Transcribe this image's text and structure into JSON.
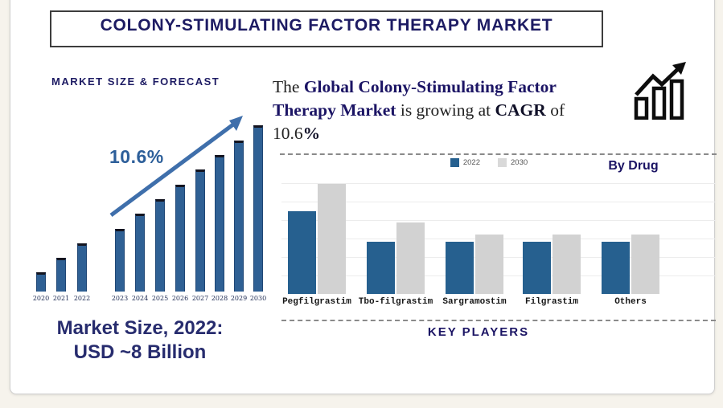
{
  "banner": {
    "title": "COLONY-STIMULATING FACTOR THERAPY MARKET"
  },
  "left_panel": {
    "heading": "MARKET SIZE & FORECAST",
    "cagr_annotation": "10.6%",
    "market_size_note_line1": "Market Size, 2022:",
    "market_size_note_line2": "USD ~8 Billion"
  },
  "right_panel": {
    "intro_lines": [
      [
        {
          "text": "The ",
          "style": "plain"
        },
        {
          "text": "Global Colony-Stimulating Factor",
          "style": "bold-navy"
        }
      ],
      [
        {
          "text": "Therapy Market",
          "style": "bold-navy"
        },
        {
          "text": " is growing at ",
          "style": "plain"
        },
        {
          "text": "CAGR",
          "style": "bold-dark"
        },
        {
          "text": " of",
          "style": "plain"
        }
      ],
      [
        {
          "text": "10.6",
          "style": "plain"
        },
        {
          "text": "%",
          "style": "bold-dark"
        }
      ]
    ],
    "by_drug_label": "By Drug",
    "key_players_label": "KEY PLAYERS",
    "legend": [
      {
        "label": "2022",
        "color": "#26608f"
      },
      {
        "label": "2030",
        "color": "#d9d9d9"
      }
    ]
  },
  "chart_data": [
    {
      "id": "market_size_forecast",
      "type": "bar",
      "title": "MARKET SIZE & FORECAST",
      "categories": [
        "2020",
        "2021",
        "2022",
        "2023",
        "2024",
        "2025",
        "2026",
        "2027",
        "2028",
        "2029",
        "2030"
      ],
      "values": [
        24,
        42,
        60,
        78,
        97,
        115,
        133,
        152,
        170,
        188,
        207
      ],
      "values_unit": "relative bar height (stylized, no numeric axis shown)",
      "annotation": "10.6% CAGR growth arrow",
      "known_point": "2022 market size = USD ~8 Billion",
      "bar_color": "#2f6094",
      "axis": "none (stylized infographic)",
      "grid": false
    },
    {
      "id": "by_drug",
      "type": "bar",
      "title": "By Drug",
      "categories": [
        "Pegfilgrastim",
        "Tbo-filgrastim",
        "Sargramostim",
        "Filgrastim",
        "Others"
      ],
      "series": [
        {
          "name": "2022",
          "values": [
            103,
            65,
            65,
            65,
            65
          ],
          "color": "#26608f"
        },
        {
          "name": "2030",
          "values": [
            137,
            89,
            74,
            74,
            74
          ],
          "color": "#d2d2d2"
        }
      ],
      "values_unit": "relative bar height (stylized, no numeric axis shown)",
      "legend_position": "top-center",
      "grid": true
    }
  ]
}
